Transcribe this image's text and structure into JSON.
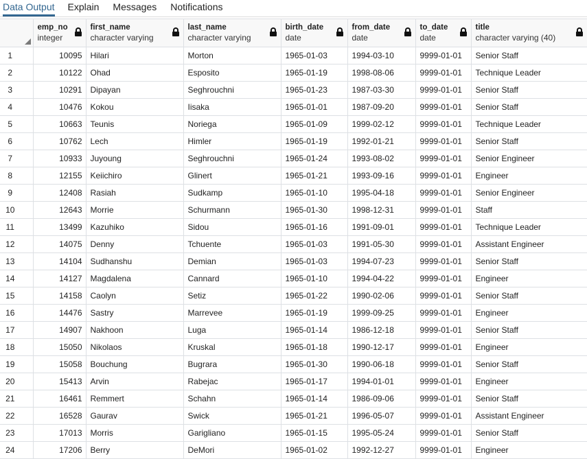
{
  "tabs": [
    {
      "label": "Data Output",
      "active": true
    },
    {
      "label": "Explain",
      "active": false
    },
    {
      "label": "Messages",
      "active": false
    },
    {
      "label": "Notifications",
      "active": false
    }
  ],
  "columns": [
    {
      "name": "emp_no",
      "type": "integer"
    },
    {
      "name": "first_name",
      "type": "character varying"
    },
    {
      "name": "last_name",
      "type": "character varying"
    },
    {
      "name": "birth_date",
      "type": "date"
    },
    {
      "name": "from_date",
      "type": "date"
    },
    {
      "name": "to_date",
      "type": "date"
    },
    {
      "name": "title",
      "type": "character varying (40)"
    }
  ],
  "rows": [
    [
      "1",
      "10095",
      "Hilari",
      "Morton",
      "1965-01-03",
      "1994-03-10",
      "9999-01-01",
      "Senior Staff"
    ],
    [
      "2",
      "10122",
      "Ohad",
      "Esposito",
      "1965-01-19",
      "1998-08-06",
      "9999-01-01",
      "Technique Leader"
    ],
    [
      "3",
      "10291",
      "Dipayan",
      "Seghrouchni",
      "1965-01-23",
      "1987-03-30",
      "9999-01-01",
      "Senior Staff"
    ],
    [
      "4",
      "10476",
      "Kokou",
      "Iisaka",
      "1965-01-01",
      "1987-09-20",
      "9999-01-01",
      "Senior Staff"
    ],
    [
      "5",
      "10663",
      "Teunis",
      "Noriega",
      "1965-01-09",
      "1999-02-12",
      "9999-01-01",
      "Technique Leader"
    ],
    [
      "6",
      "10762",
      "Lech",
      "Himler",
      "1965-01-19",
      "1992-01-21",
      "9999-01-01",
      "Senior Staff"
    ],
    [
      "7",
      "10933",
      "Juyoung",
      "Seghrouchni",
      "1965-01-24",
      "1993-08-02",
      "9999-01-01",
      "Senior Engineer"
    ],
    [
      "8",
      "12155",
      "Keiichiro",
      "Glinert",
      "1965-01-21",
      "1993-09-16",
      "9999-01-01",
      "Engineer"
    ],
    [
      "9",
      "12408",
      "Rasiah",
      "Sudkamp",
      "1965-01-10",
      "1995-04-18",
      "9999-01-01",
      "Senior Engineer"
    ],
    [
      "10",
      "12643",
      "Morrie",
      "Schurmann",
      "1965-01-30",
      "1998-12-31",
      "9999-01-01",
      "Staff"
    ],
    [
      "11",
      "13499",
      "Kazuhiko",
      "Sidou",
      "1965-01-16",
      "1991-09-01",
      "9999-01-01",
      "Technique Leader"
    ],
    [
      "12",
      "14075",
      "Denny",
      "Tchuente",
      "1965-01-03",
      "1991-05-30",
      "9999-01-01",
      "Assistant Engineer"
    ],
    [
      "13",
      "14104",
      "Sudhanshu",
      "Demian",
      "1965-01-03",
      "1994-07-23",
      "9999-01-01",
      "Senior Staff"
    ],
    [
      "14",
      "14127",
      "Magdalena",
      "Cannard",
      "1965-01-10",
      "1994-04-22",
      "9999-01-01",
      "Engineer"
    ],
    [
      "15",
      "14158",
      "Caolyn",
      "Setiz",
      "1965-01-22",
      "1990-02-06",
      "9999-01-01",
      "Senior Staff"
    ],
    [
      "16",
      "14476",
      "Sastry",
      "Marrevee",
      "1965-01-19",
      "1999-09-25",
      "9999-01-01",
      "Engineer"
    ],
    [
      "17",
      "14907",
      "Nakhoon",
      "Luga",
      "1965-01-14",
      "1986-12-18",
      "9999-01-01",
      "Senior Staff"
    ],
    [
      "18",
      "15050",
      "Nikolaos",
      "Kruskal",
      "1965-01-18",
      "1990-12-17",
      "9999-01-01",
      "Engineer"
    ],
    [
      "19",
      "15058",
      "Bouchung",
      "Bugrara",
      "1965-01-30",
      "1990-06-18",
      "9999-01-01",
      "Senior Staff"
    ],
    [
      "20",
      "15413",
      "Arvin",
      "Rabejac",
      "1965-01-17",
      "1994-01-01",
      "9999-01-01",
      "Engineer"
    ],
    [
      "21",
      "16461",
      "Remmert",
      "Schahn",
      "1965-01-14",
      "1986-09-06",
      "9999-01-01",
      "Senior Staff"
    ],
    [
      "22",
      "16528",
      "Gaurav",
      "Swick",
      "1965-01-21",
      "1996-05-07",
      "9999-01-01",
      "Assistant Engineer"
    ],
    [
      "23",
      "17013",
      "Morris",
      "Garigliano",
      "1965-01-15",
      "1995-05-24",
      "9999-01-01",
      "Senior Staff"
    ],
    [
      "24",
      "17206",
      "Berry",
      "DeMori",
      "1965-01-02",
      "1992-12-27",
      "9999-01-01",
      "Engineer"
    ]
  ],
  "colors": {
    "accent": "#326690",
    "grid_border": "#dde0e4",
    "header_bg": "#f8f8f8"
  }
}
